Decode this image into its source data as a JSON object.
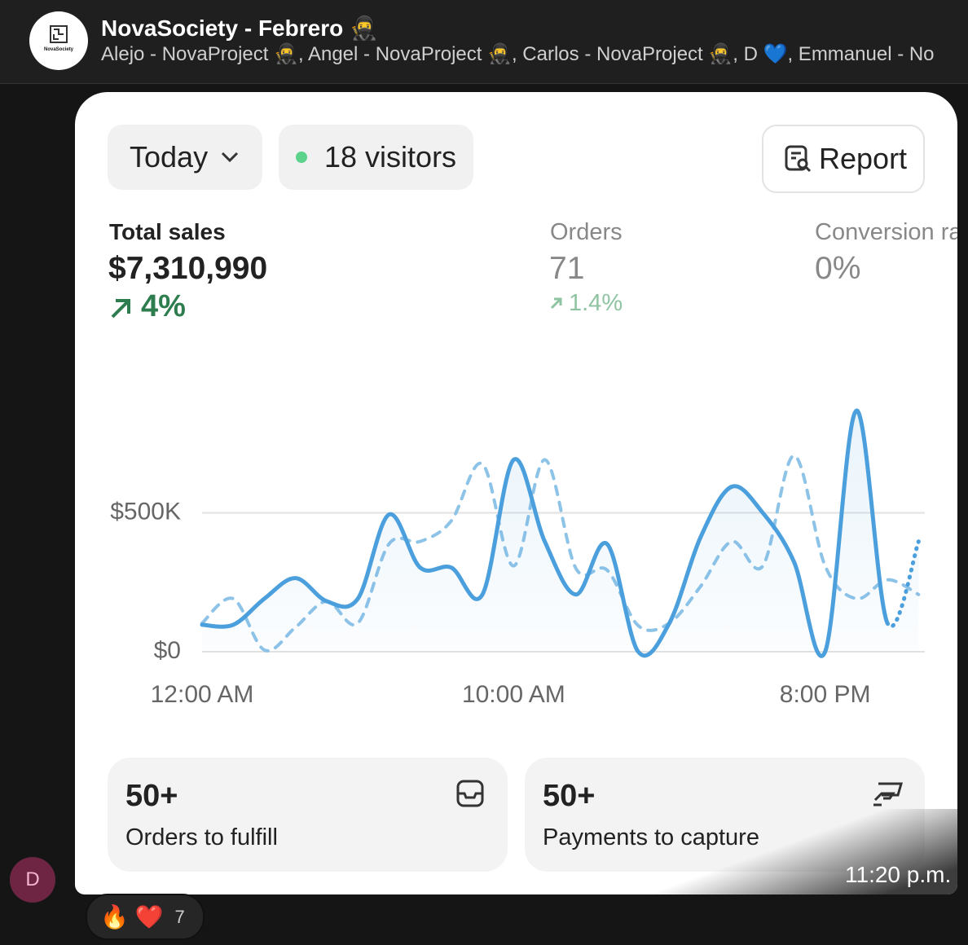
{
  "header": {
    "logo_text": "NovaSociety",
    "title": "NovaSociety - Febrero 🥷",
    "members": "Alejo - NovaProject 🥷, Angel - NovaProject 🥷, Carlos - NovaProject 🥷, D 💙, Emmanuel - No"
  },
  "card": {
    "period": "Today",
    "visitors": "18 visitors",
    "report": "Report",
    "metrics": [
      {
        "label": "Total sales",
        "value": "$7,310,990",
        "change": "4%"
      },
      {
        "label": "Orders",
        "value": "71",
        "change": "1.4%"
      },
      {
        "label": "Conversion rate",
        "value": "0%"
      }
    ]
  },
  "chart_data": {
    "type": "line",
    "x": [
      0,
      1,
      2,
      3,
      4,
      5,
      6,
      7,
      8,
      9,
      10,
      11,
      12,
      13,
      14,
      15,
      16,
      17,
      18,
      19,
      20,
      21,
      22,
      23
    ],
    "xlim": [
      0,
      23.2
    ],
    "xticks": [
      {
        "value": 0,
        "label": "12:00 AM"
      },
      {
        "value": 10,
        "label": "10:00 AM"
      },
      {
        "value": 20,
        "label": "8:00 PM"
      }
    ],
    "ylim": [
      0,
      880000
    ],
    "yticks": [
      {
        "value": 0,
        "label": "$0"
      },
      {
        "value": 500000,
        "label": "$500K"
      }
    ],
    "grid": true,
    "series": [
      {
        "color": "#4a9fdc",
        "style": "solid",
        "values": [
          97000,
          97000,
          191000,
          265000,
          182000,
          191000,
          494000,
          303000,
          303000,
          206000,
          691000,
          397000,
          206000,
          388000,
          0,
          103000,
          412000,
          594000,
          500000,
          324000,
          0,
          868000,
          103000,
          397000
        ]
      },
      {
        "color": "#8ec3e8",
        "style": "dashed",
        "values": [
          103000,
          191000,
          6000,
          88000,
          182000,
          103000,
          388000,
          397000,
          471000,
          676000,
          309000,
          691000,
          300000,
          294000,
          94000,
          103000,
          235000,
          397000,
          309000,
          706000,
          309000,
          191000,
          259000,
          206000
        ]
      }
    ]
  },
  "tasks": [
    {
      "count": "50+",
      "label": "Orders to fulfill"
    },
    {
      "count": "50+",
      "label": "Payments to capture"
    }
  ],
  "message": {
    "sender_initial": "D",
    "time": "11:20 p.m."
  },
  "reactions": {
    "emojis": "🔥 ❤️",
    "count": 7
  }
}
